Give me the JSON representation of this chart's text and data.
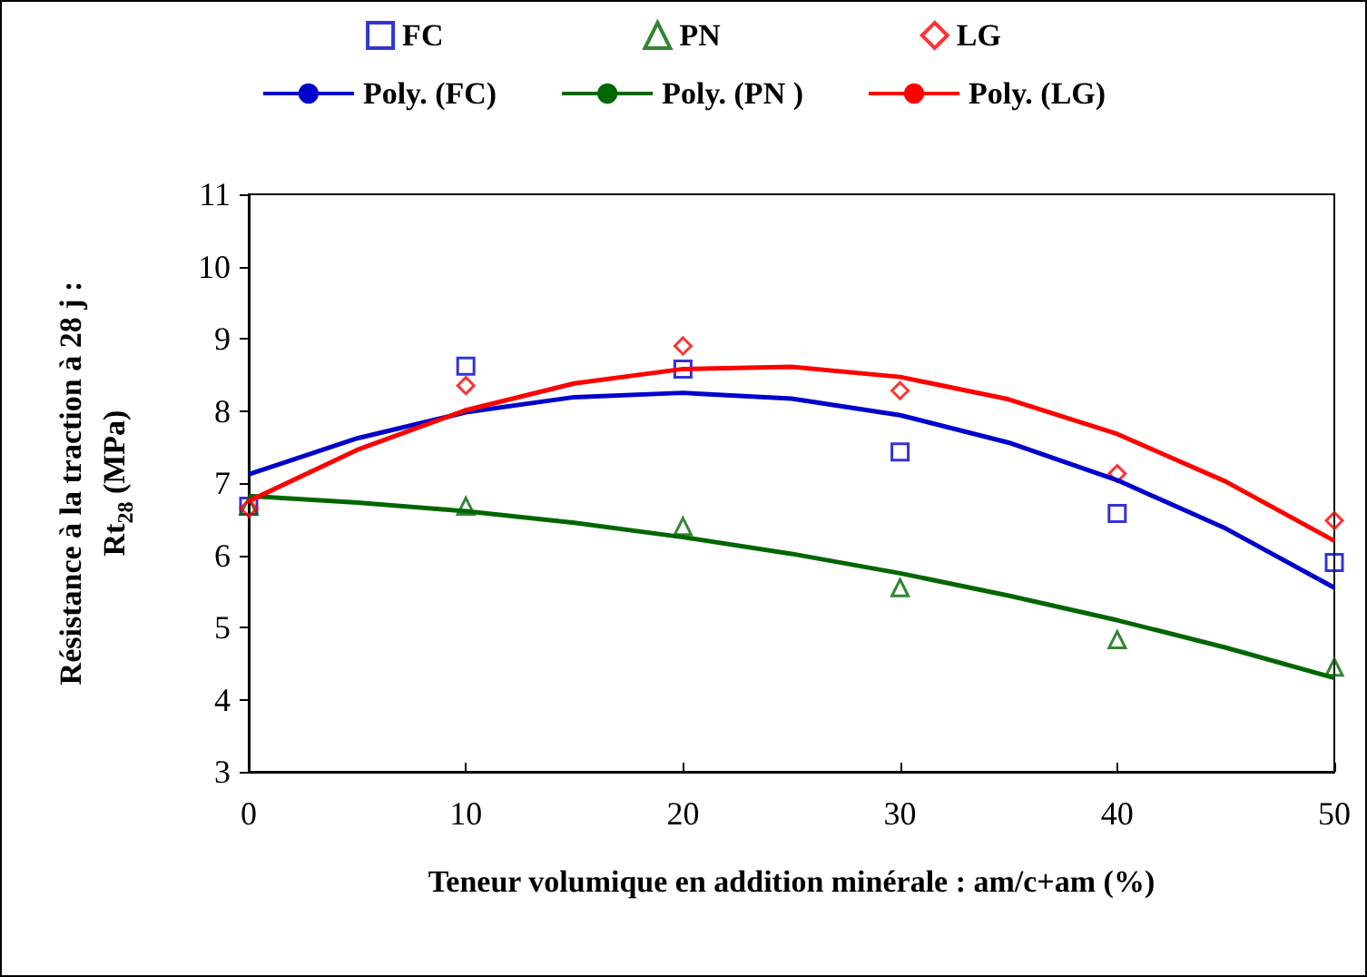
{
  "chart_data": {
    "type": "scatter",
    "xlabel": "Teneur volumique en addition minérale : am/c+am (%)",
    "ylabel": "Résistance à la traction à 28 j :\nRt$_{28}$ (MPa)",
    "x": [
      0,
      10,
      20,
      30,
      40,
      50
    ],
    "series": [
      {
        "name": "FC",
        "color": "#0000cc",
        "marker": "square",
        "values": [
          6.68,
          8.62,
          8.58,
          7.43,
          6.58,
          5.9
        ]
      },
      {
        "name": "PN",
        "color": "#006600",
        "marker": "triangle",
        "values": [
          6.68,
          6.68,
          6.4,
          5.55,
          4.83,
          4.45
        ]
      },
      {
        "name": "LG",
        "color": "#ff0000",
        "marker": "diamond",
        "values": [
          6.65,
          8.35,
          8.9,
          8.28,
          7.13,
          6.48
        ]
      },
      {
        "name": "Poly. (FC)",
        "type": "line",
        "marker": "none",
        "color": "#0000cc",
        "x": [
          0,
          5,
          10,
          15,
          20,
          25,
          30,
          35,
          40,
          45,
          50
        ],
        "values": [
          7.12,
          7.62,
          7.98,
          8.19,
          8.25,
          8.17,
          7.94,
          7.56,
          7.04,
          6.37,
          5.55
        ]
      },
      {
        "name": "Poly. (PN )",
        "type": "line",
        "marker": "none",
        "color": "#006600",
        "x": [
          0,
          5,
          10,
          15,
          20,
          25,
          30,
          35,
          40,
          45,
          50
        ],
        "values": [
          6.82,
          6.73,
          6.61,
          6.45,
          6.25,
          6.02,
          5.75,
          5.44,
          5.1,
          4.72,
          4.3
        ]
      },
      {
        "name": "Poly. (LG)",
        "type": "line",
        "marker": "none",
        "color": "#ff0000",
        "x": [
          0,
          5,
          10,
          15,
          20,
          25,
          30,
          35,
          40,
          45,
          50
        ],
        "values": [
          6.75,
          7.46,
          8.01,
          8.38,
          8.58,
          8.61,
          8.47,
          8.16,
          7.68,
          7.02,
          6.2
        ]
      }
    ],
    "xlim": [
      0,
      50
    ],
    "xticks": [
      0,
      10,
      20,
      30,
      40,
      50
    ],
    "ylim": [
      3,
      11
    ],
    "yticks": [
      3,
      4,
      5,
      6,
      7,
      8,
      9,
      10,
      11
    ],
    "grid": false,
    "legend": "top"
  }
}
